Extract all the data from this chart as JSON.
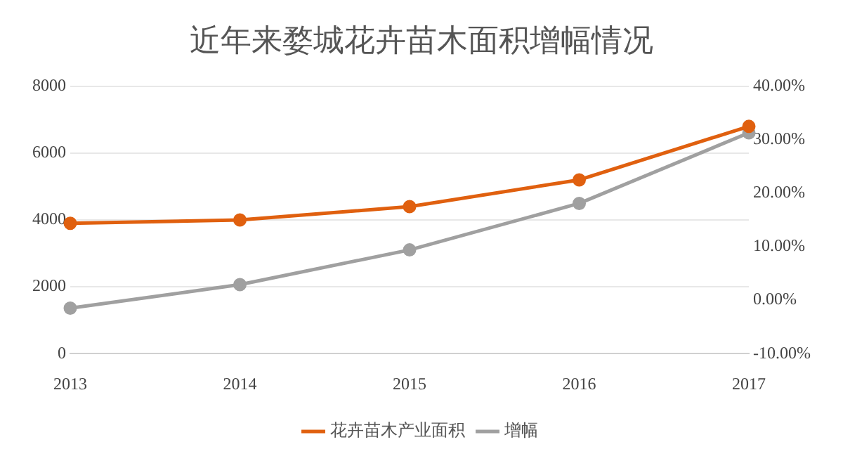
{
  "chart_data": {
    "type": "line",
    "title": "近年来婺城花卉苗木面积增幅情况",
    "categories": [
      "2013",
      "2014",
      "2015",
      "2016",
      "2017"
    ],
    "series": [
      {
        "name": "花卉苗木产业面积",
        "color": "#e0600f",
        "values": [
          3900,
          4000,
          4400,
          5200,
          6800
        ]
      },
      {
        "name": "增幅",
        "color": "#a0a0a0",
        "axis": "y2",
        "values": [
          -1.5,
          2.9,
          9.4,
          18.1,
          31.3
        ]
      }
    ],
    "ylim": [
      0,
      8000
    ],
    "yticks": [
      0,
      2000,
      4000,
      6000,
      8000
    ],
    "y2lim": [
      -10,
      40
    ],
    "y2ticks": [
      {
        "value": -10,
        "label": "-10.00%"
      },
      {
        "value": 0,
        "label": "0.00%"
      },
      {
        "value": 10,
        "label": "10.00%"
      },
      {
        "value": 20,
        "label": "20.00%"
      },
      {
        "value": 30,
        "label": "30.00%"
      },
      {
        "value": 40,
        "label": "40.00%"
      }
    ],
    "grid": "y",
    "legend": "bottom",
    "marker": "circle",
    "line_style": "solid"
  }
}
